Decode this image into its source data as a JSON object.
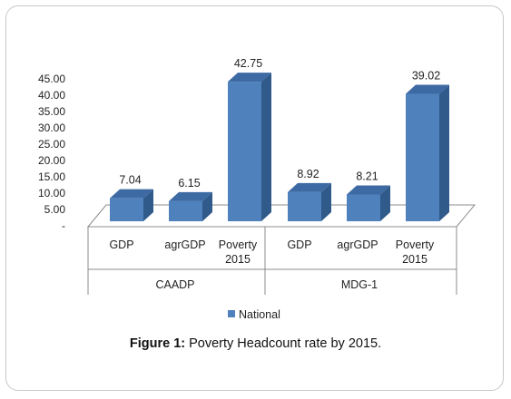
{
  "chart_data": {
    "type": "bar",
    "title": "",
    "xlabel": "",
    "ylabel": "",
    "ylim": [
      0,
      45
    ],
    "ytick_labels": [
      "-",
      "5.00",
      "10.00",
      "15.00",
      "20.00",
      "25.00",
      "30.00",
      "35.00",
      "40.00",
      "45.00"
    ],
    "groups": [
      {
        "name": "CAADP",
        "categories": [
          "GDP",
          "agrGDP",
          "Poverty 2015"
        ]
      },
      {
        "name": "MDG-1",
        "categories": [
          "GDP",
          "agrGDP",
          "Poverty 2015"
        ]
      }
    ],
    "categories": [
      "GDP",
      "agrGDP",
      "Poverty 2015",
      "GDP",
      "agrGDP",
      "Poverty 2015"
    ],
    "series": [
      {
        "name": "National",
        "values": [
          7.04,
          6.15,
          42.75,
          8.92,
          8.21,
          39.02
        ],
        "color": "#4f81bd"
      }
    ],
    "data_labels": [
      "7.04",
      "6.15",
      "42.75",
      "8.92",
      "8.21",
      "39.02"
    ],
    "legend": {
      "position": "bottom",
      "entries": [
        "National"
      ]
    },
    "style": "3d-column"
  },
  "caption": {
    "prefix": "Figure 1:",
    "text": " Poverty Headcount rate by 2015."
  },
  "colors": {
    "bar_front": "#4f81bd",
    "bar_side": "#2f5a8a",
    "bar_top": "#3d6aa3"
  }
}
